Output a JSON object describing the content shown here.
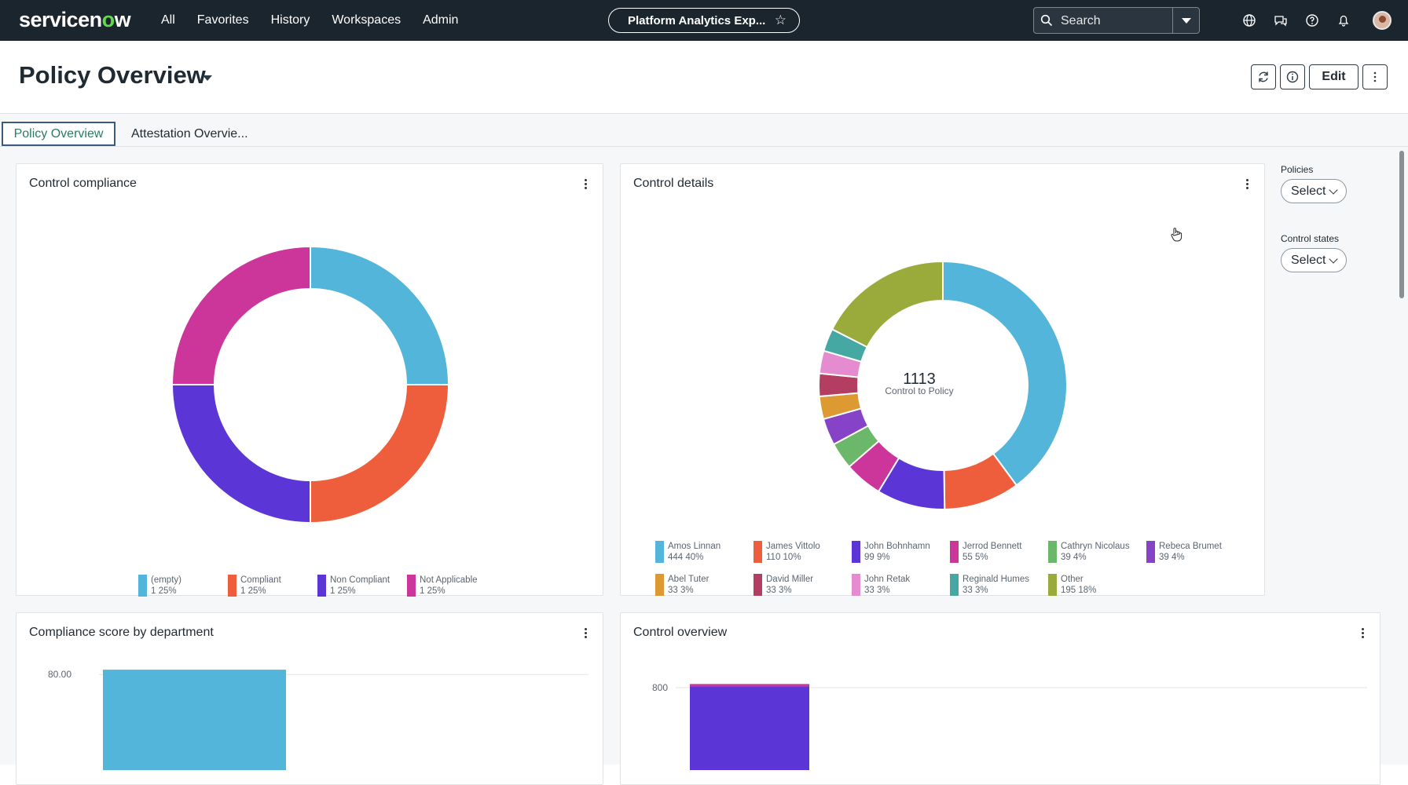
{
  "nav": {
    "logo_left": "servicen",
    "logo_o": "o",
    "logo_right": "w",
    "links": [
      "All",
      "Favorites",
      "History",
      "Workspaces",
      "Admin"
    ],
    "app_pill": "Platform Analytics Exp...",
    "search_placeholder": "Search"
  },
  "header": {
    "title": "Policy Overview",
    "edit_label": "Edit"
  },
  "tabs": [
    {
      "label": "Policy Overview",
      "active": true
    },
    {
      "label": "Attestation Overvie...",
      "active": false
    }
  ],
  "filters": {
    "policies_label": "Policies",
    "policies_value": "Select",
    "states_label": "Control states",
    "states_value": "Select"
  },
  "cards": {
    "compliance_title": "Control compliance",
    "details_title": "Control details",
    "details_center_value": "1113",
    "details_center_label": "Control to Policy",
    "dept_title": "Compliance score by department",
    "overview_title": "Control overview"
  },
  "chart_data": [
    {
      "type": "pie",
      "title": "Control compliance",
      "categories": [
        "(empty)",
        "Compliant",
        "Non Compliant",
        "Not Applicable"
      ],
      "values": [
        1,
        1,
        1,
        1
      ],
      "labels": [
        "1  25%",
        "1  25%",
        "1  25%",
        "1  25%"
      ],
      "colors": [
        "#52b5d9",
        "#ee5e3c",
        "#5c35d6",
        "#cc3599"
      ]
    },
    {
      "type": "pie",
      "title": "Control details",
      "categories": [
        "Amos Linnan",
        "James Vittolo",
        "John Bohnhamn",
        "Jerrod Bennett",
        "Cathryn Nicolaus",
        "Rebeca Brumet",
        "Abel Tuter",
        "David Miller",
        "John Retak",
        "Reginald Humes",
        "Other"
      ],
      "values": [
        444,
        110,
        99,
        55,
        39,
        39,
        33,
        33,
        33,
        33,
        195
      ],
      "labels": [
        "444  40%",
        "110  10%",
        "99  9%",
        "55  5%",
        "39  4%",
        "39  4%",
        "33  3%",
        "33  3%",
        "33  3%",
        "33  3%",
        "195  18%"
      ],
      "colors": [
        "#52b5d9",
        "#ee5e3c",
        "#5c35d6",
        "#cc3599",
        "#6cb86a",
        "#8743c7",
        "#dd9a32",
        "#b43d62",
        "#e48ccf",
        "#45a8a3",
        "#9aab3c"
      ]
    },
    {
      "type": "bar",
      "title": "Compliance score by department",
      "y_tick": "80.00",
      "values": [
        84
      ],
      "ylim": [
        0,
        100
      ],
      "colors": [
        "#52b5d9"
      ]
    },
    {
      "type": "bar",
      "title": "Control overview",
      "y_tick": "800",
      "stacked": true,
      "series_values": [
        812,
        20,
        6
      ],
      "colors": [
        "#5c35d6",
        "#cc3599",
        "#6cb86a"
      ]
    }
  ]
}
